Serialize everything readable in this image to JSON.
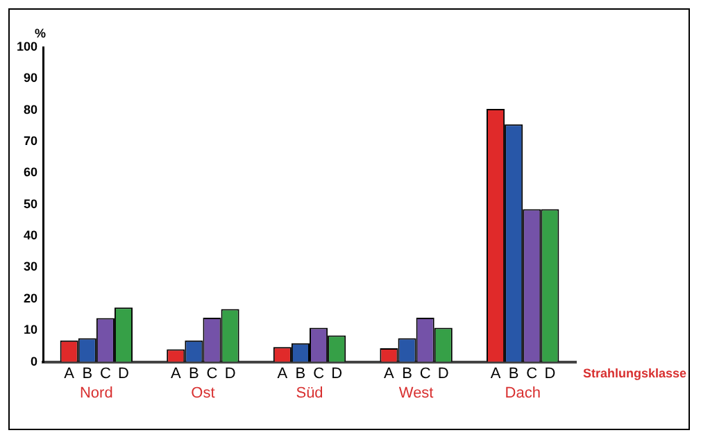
{
  "chart_data": {
    "type": "bar",
    "ylabel": "%",
    "xlabel": "Strahlungsklasse",
    "categories": [
      "Nord",
      "Ost",
      "Süd",
      "West",
      "Dach"
    ],
    "series": [
      {
        "name": "A",
        "color": "#e02a2a",
        "values": [
          6.8,
          4,
          4.7,
          4.3,
          80.4
        ]
      },
      {
        "name": "B",
        "color": "#2857a8",
        "values": [
          7.5,
          6.8,
          5.9,
          7.5,
          75.5
        ]
      },
      {
        "name": "C",
        "color": "#7452a8",
        "values": [
          13.9,
          14,
          10.8,
          14,
          48.5
        ]
      },
      {
        "name": "D",
        "color": "#36a047",
        "values": [
          17.3,
          16.8,
          8.4,
          10.8,
          48.5
        ]
      }
    ],
    "ylim": [
      0,
      100
    ],
    "yticks": [
      0,
      10,
      20,
      30,
      40,
      50,
      60,
      70,
      80,
      90,
      100
    ],
    "grid": false,
    "legend": false
  }
}
